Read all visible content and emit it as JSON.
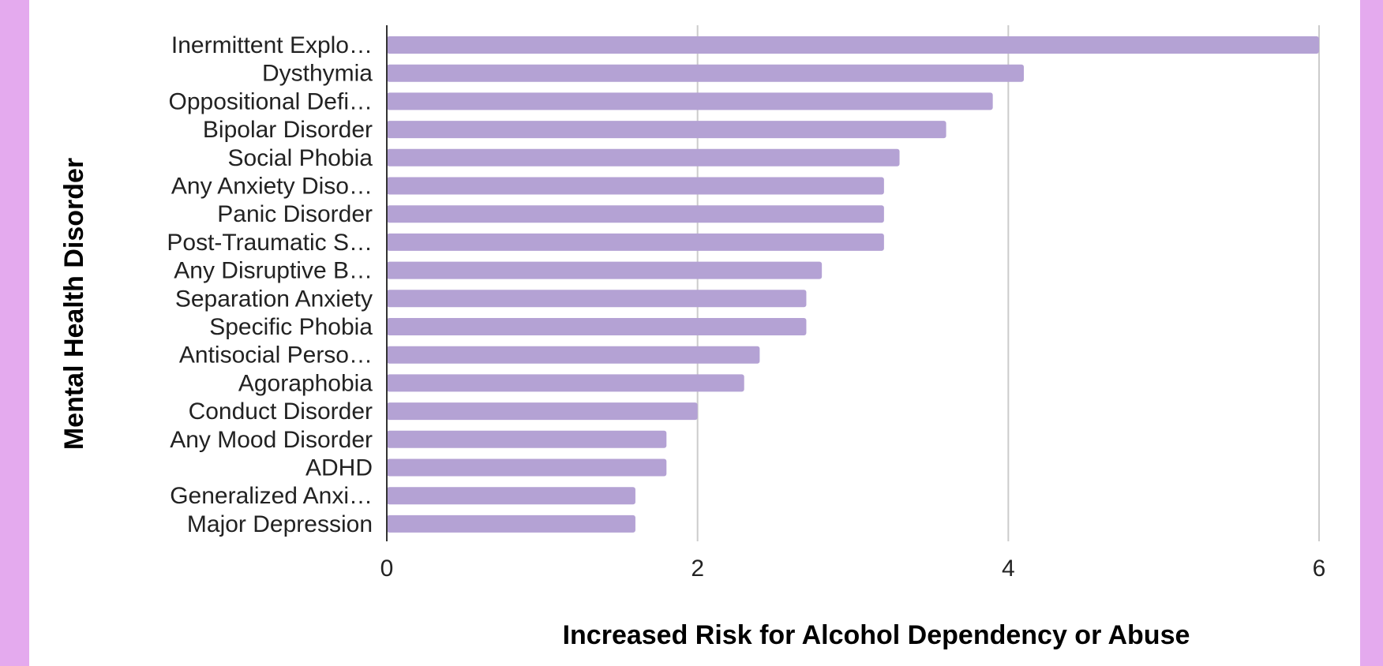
{
  "colors": {
    "page_background": "#e4aaee",
    "plot_background": "#ffffff",
    "bar": "#b4a2d4",
    "gridline": "#cccccc",
    "axis": "#333333"
  },
  "chart_data": {
    "type": "bar",
    "orientation": "horizontal",
    "xlabel": "Increased Risk for Alcohol Dependency or Abuse",
    "ylabel": "Mental Health Disorder",
    "xlim": [
      0,
      6
    ],
    "xticks": [
      "0",
      "2",
      "4",
      "6"
    ],
    "grid": true,
    "legend": "none",
    "categories": [
      "Inermittent Explo…",
      "Dysthymia",
      "Oppositional Defi…",
      "Bipolar Disorder",
      "Social Phobia",
      "Any Anxiety Diso…",
      "Panic Disorder",
      "Post-Traumatic S…",
      "Any Disruptive B…",
      "Separation Anxiety",
      "Specific Phobia",
      "Antisocial Perso…",
      "Agoraphobia",
      "Conduct Disorder",
      "Any Mood Disorder",
      "ADHD",
      "Generalized Anxi…",
      "Major Depression"
    ],
    "values": [
      6.0,
      4.1,
      3.9,
      3.6,
      3.3,
      3.2,
      3.2,
      3.2,
      2.8,
      2.7,
      2.7,
      2.4,
      2.3,
      2.0,
      1.8,
      1.8,
      1.6,
      1.6
    ]
  }
}
